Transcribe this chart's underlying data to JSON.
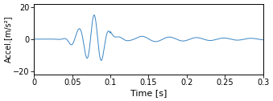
{
  "title": "",
  "xlabel": "Time [s]",
  "ylabel": "Accel.[m/s²]",
  "xlim": [
    0,
    0.3
  ],
  "ylim": [
    -22,
    22
  ],
  "yticks": [
    -20,
    0,
    20
  ],
  "xticks": [
    0,
    0.05,
    0.1,
    0.15,
    0.2,
    0.25,
    0.3
  ],
  "xtick_labels": [
    "0",
    "0.05",
    "0.1",
    "0.15",
    "0.2",
    "0.25",
    "0.3"
  ],
  "line_color": "#3a85c4",
  "line_width": 0.7,
  "background_color": "#ffffff",
  "figsize": [
    3.39,
    1.26
  ],
  "dpi": 100
}
